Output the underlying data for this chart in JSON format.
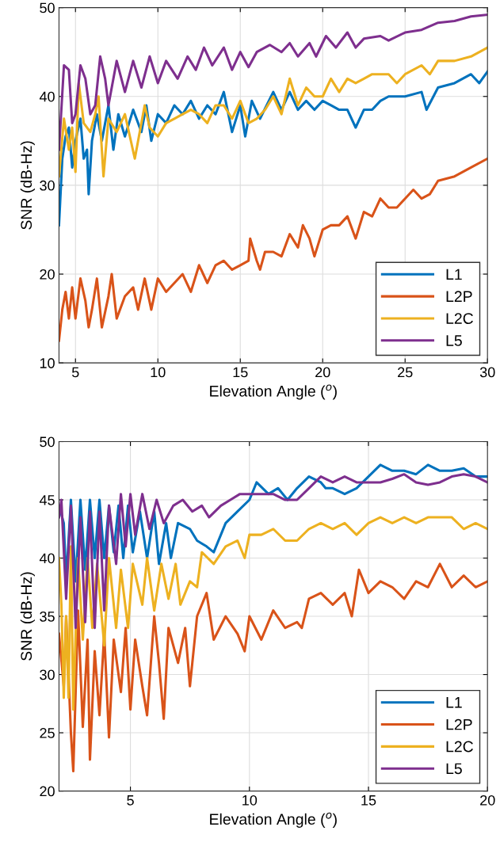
{
  "chart_data": [
    {
      "type": "line",
      "xlabel": "Elevation Angle ($^{o}$)",
      "ylabel": "SNR (dB-Hz)",
      "xlim": [
        4,
        30
      ],
      "xticks": [
        5,
        10,
        15,
        20,
        25,
        30
      ],
      "ylim": [
        10,
        50
      ],
      "yticks": [
        10,
        20,
        30,
        40,
        50
      ],
      "grid": true,
      "legend": "bottom right",
      "line_style": "solid",
      "series": [
        {
          "name": "L1",
          "color": "#0072bd",
          "x": [
            4.0,
            4.2,
            4.4,
            4.6,
            4.8,
            5.0,
            5.3,
            5.5,
            5.7,
            5.8,
            6.0,
            6.3,
            6.6,
            7.0,
            7.3,
            7.6,
            8.0,
            8.5,
            9.0,
            9.3,
            9.6,
            10.0,
            10.5,
            11.0,
            11.5,
            12.0,
            12.5,
            13.0,
            13.5,
            14.0,
            14.5,
            15.0,
            15.3,
            15.7,
            16.2,
            17.0,
            17.5,
            18.0,
            18.5,
            19.0,
            19.5,
            20.0,
            20.5,
            21.0,
            21.5,
            22.0,
            22.5,
            23.0,
            23.5,
            24.0,
            25.0,
            26.0,
            26.3,
            27.0,
            28.0,
            29.0,
            29.5,
            30.0
          ],
          "values": [
            25.5,
            33,
            35.5,
            36.5,
            32,
            35,
            37.5,
            33,
            34,
            29,
            35,
            38,
            35,
            39,
            34,
            38,
            35.5,
            38.5,
            36,
            39,
            35,
            38,
            37,
            39,
            38,
            39.5,
            37.5,
            39,
            38,
            40.5,
            36,
            39,
            35.5,
            39.5,
            37.5,
            40.5,
            38.5,
            40.5,
            38.5,
            39.5,
            38.5,
            39.5,
            39,
            38.5,
            38.5,
            36.5,
            38.5,
            38.5,
            39.5,
            40,
            40,
            40.5,
            38.5,
            41,
            41.5,
            42.5,
            41.5,
            42.8
          ]
        },
        {
          "name": "L2P",
          "color": "#d95319",
          "x": [
            4.0,
            4.2,
            4.4,
            4.6,
            4.8,
            5.0,
            5.3,
            5.6,
            5.8,
            6.0,
            6.3,
            6.6,
            7.0,
            7.2,
            7.5,
            8.0,
            8.5,
            8.8,
            9.2,
            9.6,
            10.0,
            10.5,
            11.0,
            11.5,
            12.0,
            12.5,
            13.0,
            13.5,
            14.0,
            14.5,
            15.0,
            15.5,
            15.6,
            16.0,
            16.2,
            16.5,
            17.0,
            17.5,
            18.0,
            18.5,
            18.8,
            19.2,
            19.5,
            20.0,
            20.5,
            21.0,
            21.5,
            22.0,
            22.5,
            23.0,
            23.5,
            24.0,
            24.5,
            25.0,
            25.5,
            26.0,
            26.5,
            27.0,
            28.0,
            29.0,
            30.0
          ],
          "values": [
            12.5,
            16,
            18,
            15,
            18.5,
            15,
            19.5,
            17,
            14,
            16,
            19.5,
            14,
            17.5,
            20,
            15,
            17.5,
            18.5,
            16,
            19.5,
            16,
            19.5,
            18,
            19,
            20,
            18,
            21,
            19,
            21,
            21.5,
            20.5,
            21,
            21.5,
            24,
            21.5,
            20.5,
            22.5,
            22.5,
            22,
            24.5,
            23,
            25.5,
            24,
            22,
            25,
            25.5,
            25.5,
            26.5,
            24,
            27,
            26.5,
            28.5,
            27.5,
            27.5,
            28.5,
            29.5,
            28.5,
            29,
            30.5,
            31,
            32,
            33
          ]
        },
        {
          "name": "L2C",
          "color": "#edb120",
          "x": [
            4.0,
            4.3,
            4.6,
            4.8,
            5.0,
            5.2,
            5.5,
            5.9,
            6.2,
            6.4,
            6.7,
            7.0,
            7.5,
            8.0,
            8.6,
            9.0,
            9.2,
            9.5,
            10.0,
            10.5,
            11.0,
            11.5,
            12.0,
            12.5,
            13.0,
            13.5,
            14.0,
            14.5,
            15.0,
            15.5,
            16.0,
            16.5,
            17.0,
            17.5,
            18.0,
            18.5,
            19.0,
            19.5,
            20.0,
            20.5,
            21.0,
            21.5,
            22.0,
            22.5,
            23.0,
            24.0,
            24.5,
            25.0,
            26.0,
            26.5,
            27.0,
            28.0,
            29.0,
            30.0
          ],
          "values": [
            31,
            37.5,
            34,
            36.5,
            31.5,
            41.5,
            37,
            36,
            38,
            40,
            31,
            37.5,
            36,
            38,
            33,
            37,
            39,
            36.5,
            35.5,
            37,
            37.5,
            38,
            38.5,
            38,
            37,
            39,
            39,
            37.5,
            39.5,
            37,
            37.5,
            38.5,
            40,
            38,
            42,
            39,
            41,
            40,
            40,
            42,
            40.5,
            42,
            41.5,
            42,
            42.5,
            42.5,
            41.5,
            42.5,
            43.5,
            42.5,
            44,
            44,
            44.5,
            45.5
          ]
        },
        {
          "name": "L5",
          "color": "#7e2f8e",
          "x": [
            4.0,
            4.3,
            4.6,
            4.8,
            5.0,
            5.3,
            5.6,
            5.9,
            6.2,
            6.5,
            6.8,
            7.0,
            7.5,
            8.0,
            8.5,
            9.0,
            9.5,
            10.0,
            10.5,
            11.2,
            11.8,
            12.3,
            12.8,
            13.3,
            14.0,
            14.5,
            15.0,
            15.5,
            16.0,
            16.8,
            17.5,
            18.0,
            18.5,
            19.2,
            19.6,
            20.2,
            20.8,
            21.5,
            22.0,
            22.5,
            23.5,
            24.0,
            25.0,
            26.0,
            27.0,
            28.0,
            29.0,
            30.0
          ],
          "values": [
            34,
            43.5,
            43,
            37,
            38,
            43.5,
            42,
            38,
            39,
            44.5,
            42,
            39,
            44,
            40.5,
            44,
            41,
            44.5,
            41.5,
            44,
            42,
            44.5,
            43,
            45.5,
            43.5,
            45.5,
            43,
            45,
            43.3,
            45,
            45.8,
            45,
            46,
            44.5,
            46,
            44.5,
            46.8,
            45.5,
            47.2,
            45.5,
            46.5,
            46.8,
            46.3,
            47.2,
            47.5,
            48.3,
            48.5,
            49,
            49.2
          ]
        }
      ]
    },
    {
      "type": "line",
      "xlabel": "Elevation Angle ($^{o}$)",
      "ylabel": "SNR (dB-Hz)",
      "xlim": [
        2,
        20
      ],
      "xticks": [
        5,
        10,
        15,
        20
      ],
      "ylim": [
        20,
        50
      ],
      "yticks": [
        20,
        25,
        30,
        35,
        40,
        45,
        50
      ],
      "grid": true,
      "legend": "bottom right",
      "line_style": "solid",
      "series": [
        {
          "name": "L1",
          "color": "#0072bd",
          "x": [
            2.0,
            2.2,
            2.3,
            2.5,
            2.7,
            2.9,
            3.1,
            3.3,
            3.5,
            3.7,
            3.9,
            4.1,
            4.3,
            4.5,
            4.7,
            4.9,
            5.1,
            5.4,
            5.7,
            6.0,
            6.2,
            6.5,
            6.7,
            7.0,
            7.5,
            7.8,
            8.2,
            8.5,
            9.0,
            9.5,
            10.0,
            10.3,
            10.8,
            11.2,
            11.6,
            12.0,
            12.5,
            13.0,
            13.2,
            13.5,
            14.0,
            14.5,
            15.0,
            15.5,
            16.0,
            16.5,
            17.0,
            17.5,
            18.0,
            18.5,
            19.0,
            19.5,
            20.0
          ],
          "values": [
            44.5,
            43,
            38,
            45,
            38,
            45,
            39,
            45,
            40,
            45,
            40,
            44.5,
            40.5,
            44.5,
            40,
            44.5,
            40.5,
            44,
            40,
            44,
            39.5,
            43,
            40,
            43,
            42.5,
            41.5,
            41,
            40.5,
            43,
            44,
            45,
            46.5,
            45.5,
            46,
            45,
            46,
            47,
            46.5,
            46,
            46,
            45.5,
            46,
            47,
            48,
            47.5,
            47.5,
            47.2,
            48,
            47.5,
            47.5,
            47.7,
            47,
            47
          ]
        },
        {
          "name": "L2P",
          "color": "#d95319",
          "x": [
            2.0,
            2.2,
            2.3,
            2.5,
            2.6,
            2.8,
            3.0,
            3.2,
            3.3,
            3.5,
            3.7,
            3.9,
            4.1,
            4.3,
            4.6,
            4.8,
            5.0,
            5.2,
            5.5,
            5.7,
            6.0,
            6.2,
            6.4,
            6.6,
            7.0,
            7.3,
            7.5,
            7.8,
            8.2,
            8.5,
            9.0,
            9.5,
            9.8,
            10.0,
            10.5,
            11.0,
            11.5,
            12.0,
            12.2,
            12.5,
            13.0,
            13.5,
            14.0,
            14.3,
            14.6,
            15.0,
            15.5,
            16.0,
            16.5,
            17.0,
            17.5,
            18.0,
            18.5,
            19.0,
            19.5,
            20.0
          ],
          "values": [
            33.5,
            29,
            35,
            25,
            21.7,
            35.5,
            25.5,
            33,
            22.7,
            32,
            26.5,
            33.5,
            24.6,
            33,
            28.5,
            34,
            27,
            33,
            29,
            26.5,
            35,
            31,
            26.2,
            34,
            31,
            34,
            29,
            35,
            37,
            33,
            35,
            33.5,
            32,
            35,
            33,
            35.5,
            34,
            34.5,
            34,
            36.5,
            37,
            36,
            37,
            35,
            39,
            37,
            38,
            37.5,
            36.5,
            38,
            37.5,
            39.5,
            37.5,
            38.5,
            37.5,
            38
          ]
        },
        {
          "name": "L2C",
          "color": "#edb120",
          "x": [
            2.0,
            2.1,
            2.2,
            2.3,
            2.4,
            2.5,
            2.6,
            2.8,
            3.0,
            3.2,
            3.4,
            3.6,
            3.9,
            4.1,
            4.4,
            4.6,
            4.9,
            5.1,
            5.5,
            5.7,
            6.0,
            6.3,
            6.6,
            6.9,
            7.1,
            7.5,
            7.8,
            8.0,
            8.5,
            9.0,
            9.5,
            9.8,
            10.0,
            10.5,
            11.0,
            11.5,
            12.0,
            12.5,
            13.0,
            13.5,
            14.0,
            14.5,
            15.0,
            15.5,
            16.0,
            16.5,
            17.0,
            17.5,
            18.0,
            18.5,
            19.0,
            19.5,
            20.0
          ],
          "values": [
            40,
            36,
            28,
            35,
            28,
            41,
            27,
            40,
            33,
            40,
            34,
            39.5,
            32.5,
            40,
            34,
            39,
            34,
            39.5,
            36,
            40,
            35.5,
            39.5,
            36.5,
            39.5,
            36,
            38,
            37.5,
            40.5,
            39.5,
            41,
            41.5,
            40,
            42,
            42,
            42.5,
            41.5,
            41.5,
            42.5,
            43,
            42.5,
            43,
            42,
            43,
            43.5,
            43,
            43.5,
            43,
            43.5,
            43.5,
            43.5,
            42.5,
            43,
            42.5
          ]
        },
        {
          "name": "L5",
          "color": "#7e2f8e",
          "x": [
            2.0,
            2.1,
            2.3,
            2.5,
            2.7,
            2.9,
            3.1,
            3.3,
            3.5,
            3.7,
            3.9,
            4.1,
            4.4,
            4.6,
            4.8,
            5.0,
            5.2,
            5.5,
            5.8,
            6.1,
            6.4,
            6.8,
            7.2,
            7.6,
            8.0,
            8.3,
            8.8,
            9.2,
            9.6,
            10.0,
            10.5,
            11.0,
            11.5,
            12.0,
            12.5,
            13.0,
            13.5,
            14.0,
            14.5,
            15.0,
            15.5,
            16.0,
            16.5,
            17.0,
            17.5,
            18.0,
            18.5,
            19.0,
            19.5,
            20.0
          ],
          "values": [
            43.5,
            45,
            36.5,
            44.5,
            34,
            43.5,
            34.5,
            44,
            34,
            44,
            35.5,
            44.5,
            39.5,
            45.5,
            41,
            45.5,
            42,
            45.5,
            42.5,
            45,
            43,
            44.5,
            45,
            44,
            44.5,
            43.5,
            44.5,
            45,
            45.5,
            45.5,
            45.5,
            45.5,
            45,
            45,
            46,
            47,
            46.5,
            47,
            46.5,
            46.5,
            46.5,
            46.8,
            47.2,
            46.5,
            46.3,
            46.5,
            47,
            47.2,
            47,
            46.5
          ]
        }
      ]
    }
  ]
}
